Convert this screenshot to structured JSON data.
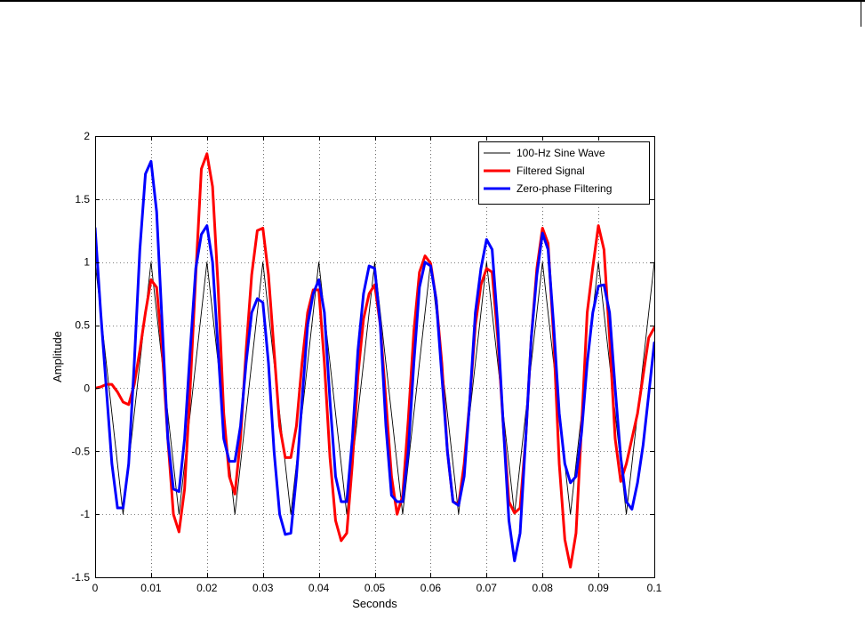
{
  "chart_data": {
    "type": "line",
    "title": "",
    "xlabel": "Seconds",
    "ylabel": "Amplitude",
    "xlim": [
      0,
      0.1
    ],
    "ylim": [
      -1.5,
      2
    ],
    "x_ticks": [
      0,
      0.01,
      0.02,
      0.03,
      0.04,
      0.05,
      0.06,
      0.07,
      0.08,
      0.09,
      0.1
    ],
    "x_tick_labels": [
      "0",
      "0.01",
      "0.02",
      "0.03",
      "0.04",
      "0.05",
      "0.06",
      "0.07",
      "0.08",
      "0.09",
      "0.1"
    ],
    "y_ticks": [
      -1.5,
      -1,
      -0.5,
      0,
      0.5,
      1,
      1.5,
      2
    ],
    "y_tick_labels": [
      "-1.5",
      "-1",
      "-0.5",
      "0",
      "0.5",
      "1",
      "1.5",
      "2"
    ],
    "grid": true,
    "legend_position": "top-right",
    "series": [
      {
        "name": "100-Hz Sine Wave",
        "color": "#000000",
        "line_width": "thin",
        "x": [
          0,
          0.0025,
          0.005,
          0.0075,
          0.01,
          0.0125,
          0.015,
          0.0175,
          0.02,
          0.0225,
          0.025,
          0.0275,
          0.03,
          0.0325,
          0.035,
          0.0375,
          0.04,
          0.0425,
          0.045,
          0.0475,
          0.05,
          0.0525,
          0.055,
          0.0575,
          0.06,
          0.0625,
          0.065,
          0.0675,
          0.07,
          0.0725,
          0.075,
          0.0775,
          0.08,
          0.0825,
          0.085,
          0.0875,
          0.09,
          0.0925,
          0.095,
          0.0975,
          0.1
        ],
        "y": [
          1,
          0,
          -1,
          0,
          1,
          0,
          -1,
          0,
          1,
          0,
          -1,
          0,
          1,
          0,
          -1,
          0,
          1,
          0,
          -1,
          0,
          1,
          0,
          -1,
          0,
          1,
          0,
          -1,
          0,
          1,
          0,
          -1,
          0,
          1,
          0,
          -1,
          0,
          1,
          0,
          -1,
          0,
          1
        ]
      },
      {
        "name": "Filtered Signal",
        "color": "#ff0000",
        "line_width": "thick",
        "x": [
          0,
          0.001,
          0.002,
          0.003,
          0.004,
          0.005,
          0.006,
          0.007,
          0.008,
          0.009,
          0.01,
          0.011,
          0.012,
          0.013,
          0.014,
          0.015,
          0.016,
          0.017,
          0.018,
          0.019,
          0.02,
          0.021,
          0.022,
          0.023,
          0.024,
          0.025,
          0.026,
          0.027,
          0.028,
          0.029,
          0.03,
          0.031,
          0.032,
          0.033,
          0.034,
          0.035,
          0.036,
          0.037,
          0.038,
          0.039,
          0.04,
          0.041,
          0.042,
          0.043,
          0.044,
          0.045,
          0.046,
          0.047,
          0.048,
          0.049,
          0.05,
          0.051,
          0.052,
          0.053,
          0.054,
          0.055,
          0.056,
          0.057,
          0.058,
          0.059,
          0.06,
          0.061,
          0.062,
          0.063,
          0.064,
          0.065,
          0.066,
          0.067,
          0.068,
          0.069,
          0.07,
          0.071,
          0.072,
          0.073,
          0.074,
          0.075,
          0.076,
          0.077,
          0.078,
          0.079,
          0.08,
          0.081,
          0.082,
          0.083,
          0.084,
          0.085,
          0.086,
          0.087,
          0.088,
          0.089,
          0.09,
          0.091,
          0.092,
          0.093,
          0.094,
          0.095,
          0.096,
          0.097,
          0.098,
          0.099,
          0.1
        ],
        "y": [
          0,
          0.01,
          0.03,
          0.03,
          -0.03,
          -0.11,
          -0.13,
          0.03,
          0.3,
          0.6,
          0.86,
          0.8,
          0.3,
          -0.4,
          -1.0,
          -1.14,
          -0.8,
          0.0,
          0.9,
          1.74,
          1.86,
          1.6,
          0.8,
          -0.2,
          -0.7,
          -0.84,
          -0.4,
          0.3,
          0.9,
          1.25,
          1.27,
          0.9,
          0.3,
          -0.3,
          -0.55,
          -0.55,
          -0.3,
          0.2,
          0.6,
          0.78,
          0.78,
          0.2,
          -0.55,
          -1.05,
          -1.21,
          -1.15,
          -0.6,
          0.1,
          0.55,
          0.75,
          0.82,
          0.5,
          -0.1,
          -0.7,
          -1.0,
          -0.85,
          -0.25,
          0.45,
          0.92,
          1.05,
          0.99,
          0.7,
          0.2,
          -0.5,
          -0.9,
          -0.92,
          -0.6,
          -0.1,
          0.5,
          0.82,
          0.95,
          0.92,
          0.4,
          -0.3,
          -0.9,
          -0.99,
          -0.95,
          -0.4,
          0.4,
          0.95,
          1.27,
          1.15,
          0.4,
          -0.6,
          -1.2,
          -1.42,
          -1.15,
          -0.3,
          0.6,
          0.96,
          1.29,
          1.1,
          0.4,
          -0.4,
          -0.74,
          -0.6,
          -0.4,
          -0.2,
          0.1,
          0.4,
          0.48
        ]
      },
      {
        "name": "Zero-phase Filtering",
        "color": "#0000ff",
        "line_width": "thick",
        "x": [
          0,
          0.001,
          0.002,
          0.003,
          0.004,
          0.005,
          0.006,
          0.007,
          0.008,
          0.009,
          0.01,
          0.011,
          0.012,
          0.013,
          0.014,
          0.015,
          0.016,
          0.017,
          0.018,
          0.019,
          0.02,
          0.021,
          0.022,
          0.023,
          0.024,
          0.025,
          0.026,
          0.027,
          0.028,
          0.029,
          0.03,
          0.031,
          0.032,
          0.033,
          0.034,
          0.035,
          0.036,
          0.037,
          0.038,
          0.039,
          0.04,
          0.041,
          0.042,
          0.043,
          0.044,
          0.045,
          0.046,
          0.047,
          0.048,
          0.049,
          0.05,
          0.051,
          0.052,
          0.053,
          0.054,
          0.055,
          0.056,
          0.057,
          0.058,
          0.059,
          0.06,
          0.061,
          0.062,
          0.063,
          0.064,
          0.065,
          0.066,
          0.067,
          0.068,
          0.069,
          0.07,
          0.071,
          0.072,
          0.073,
          0.074,
          0.075,
          0.076,
          0.077,
          0.078,
          0.079,
          0.08,
          0.081,
          0.082,
          0.083,
          0.084,
          0.085,
          0.086,
          0.087,
          0.088,
          0.089,
          0.09,
          0.091,
          0.092,
          0.093,
          0.094,
          0.095,
          0.096,
          0.097,
          0.098,
          0.099,
          0.1
        ],
        "y": [
          1.27,
          0.6,
          0.0,
          -0.6,
          -0.95,
          -0.95,
          -0.6,
          0.2,
          1.1,
          1.7,
          1.8,
          1.4,
          0.5,
          -0.4,
          -0.8,
          -0.82,
          -0.4,
          0.3,
          0.95,
          1.22,
          1.29,
          1.0,
          0.3,
          -0.4,
          -0.58,
          -0.58,
          -0.3,
          0.2,
          0.6,
          0.71,
          0.68,
          0.2,
          -0.5,
          -1.0,
          -1.16,
          -1.15,
          -0.7,
          -0.1,
          0.5,
          0.75,
          0.86,
          0.6,
          -0.1,
          -0.7,
          -0.9,
          -0.9,
          -0.4,
          0.3,
          0.75,
          0.97,
          0.95,
          0.5,
          -0.3,
          -0.85,
          -0.9,
          -0.9,
          -0.5,
          0.2,
          0.8,
          1.0,
          0.97,
          0.7,
          0.1,
          -0.5,
          -0.9,
          -0.93,
          -0.7,
          -0.1,
          0.6,
          0.95,
          1.18,
          1.1,
          0.5,
          -0.3,
          -1.05,
          -1.37,
          -1.15,
          -0.4,
          0.4,
          0.9,
          1.23,
          1.1,
          0.5,
          -0.2,
          -0.6,
          -0.75,
          -0.7,
          -0.35,
          0.2,
          0.6,
          0.81,
          0.82,
          0.6,
          0.0,
          -0.55,
          -0.9,
          -0.96,
          -0.75,
          -0.45,
          -0.05,
          0.36
        ]
      }
    ]
  }
}
